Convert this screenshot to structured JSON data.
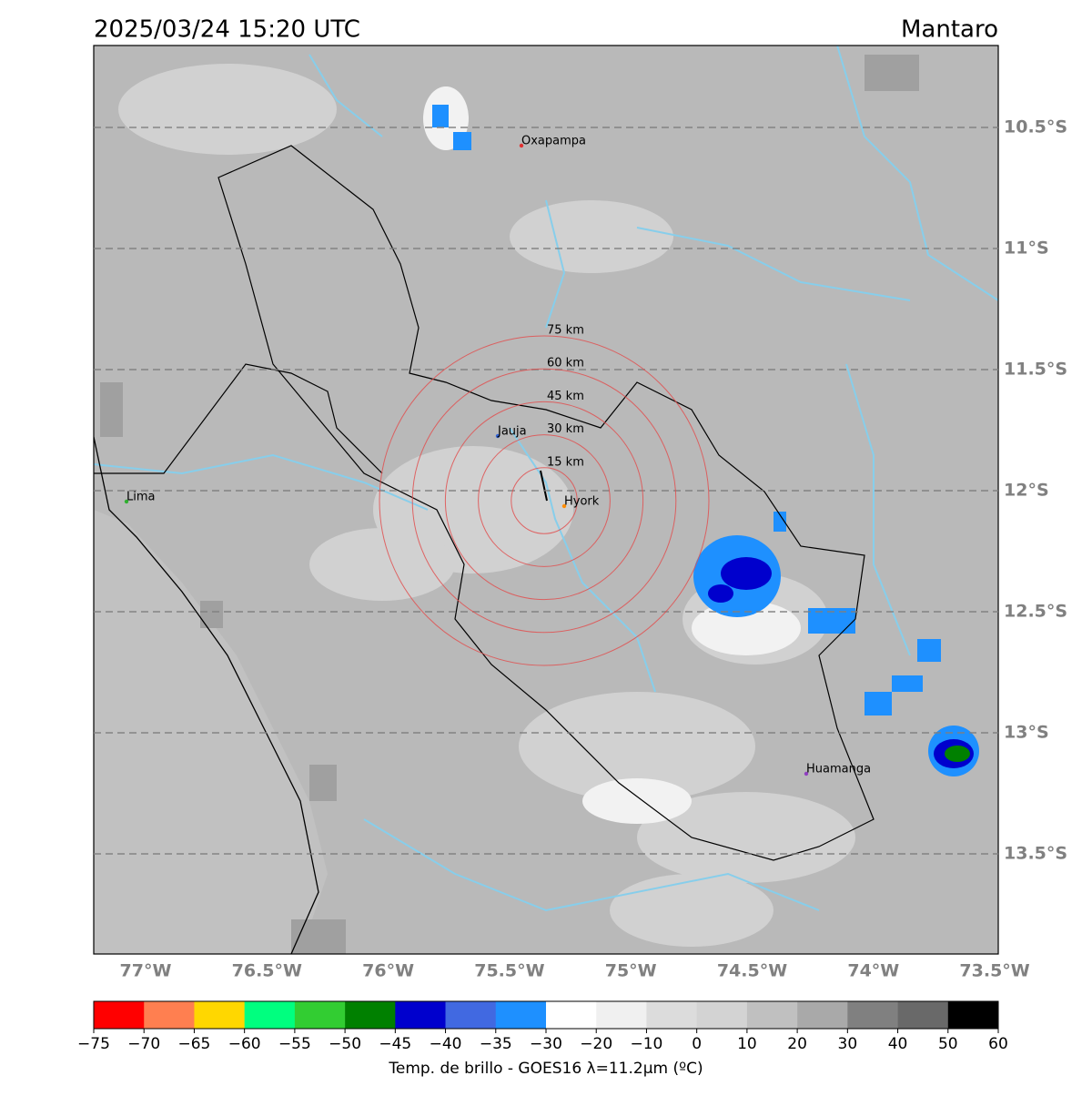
{
  "header": {
    "datetime": "2025/03/24 15:20 UTC",
    "region": "Mantaro"
  },
  "map": {
    "lat_labels": [
      "10.5°S",
      "11°S",
      "11.5°S",
      "12°S",
      "12.5°S",
      "13°S",
      "13.5°S"
    ],
    "lon_labels": [
      "77°W",
      "76.5°W",
      "76°W",
      "75.5°W",
      "75°W",
      "74.5°W",
      "74°W",
      "73.5°W"
    ],
    "cities": [
      "Oxapampa",
      "Jauja",
      "Lima",
      "Hyork",
      "Huamanga"
    ],
    "rings": [
      "75 km",
      "60 km",
      "45 km",
      "30 km",
      "15 km"
    ]
  },
  "colorbar": {
    "label": "Temp. de brillo - GOES16 λ=11.2μm (ºC)",
    "colors": [
      "#ff0000",
      "#ff7f50",
      "#ffd700",
      "#00ff7f",
      "#32cd32",
      "#008000",
      "#0000cd",
      "#4169e1",
      "#1e90ff",
      "#ffffff",
      "#f0f0f0",
      "#dcdcdc",
      "#d3d3d3",
      "#c0c0c0",
      "#a9a9a9",
      "#808080",
      "#696969",
      "#000000"
    ],
    "ticks": [
      {
        "value": -75,
        "label": "−75"
      },
      {
        "value": -70,
        "label": "−70"
      },
      {
        "value": -65,
        "label": "−65"
      },
      {
        "value": -60,
        "label": "−60"
      },
      {
        "value": -55,
        "label": "−55"
      },
      {
        "value": -50,
        "label": "−50"
      },
      {
        "value": -45,
        "label": "−45"
      },
      {
        "value": -40,
        "label": "−40"
      },
      {
        "value": -35,
        "label": "−35"
      },
      {
        "value": -30,
        "label": "−30"
      },
      {
        "value": -20,
        "label": "−20"
      },
      {
        "value": -10,
        "label": "−10"
      },
      0,
      10,
      20,
      30,
      40,
      50,
      60
    ]
  }
}
